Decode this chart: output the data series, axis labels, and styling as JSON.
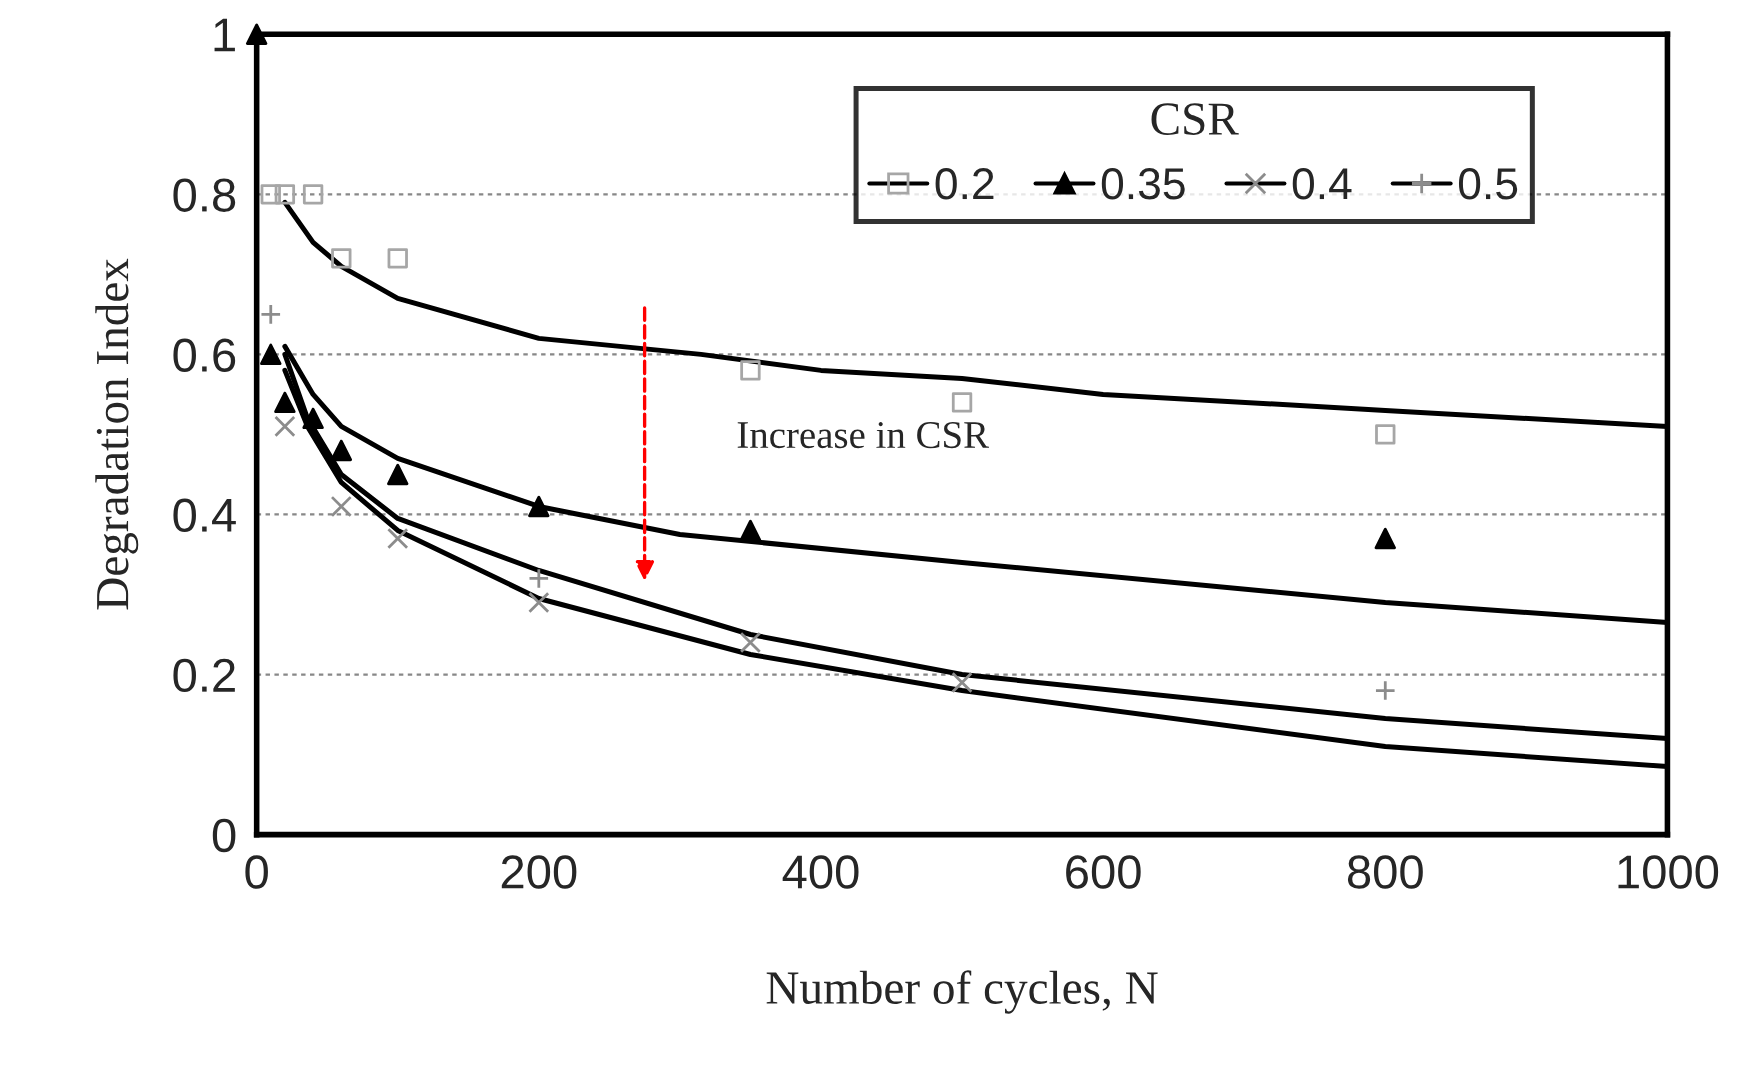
{
  "chart_data": {
    "type": "scatter",
    "xlabel": "Number of cycles, N",
    "ylabel": "Degradation Index",
    "legend_title": "CSR",
    "xlim": [
      0,
      1000
    ],
    "xticks": [
      0,
      200,
      400,
      600,
      800,
      1000
    ],
    "ylim": [
      0,
      1
    ],
    "yticks": [
      0,
      0.2,
      0.4,
      0.6,
      0.8,
      1
    ],
    "grid": "y",
    "legend": "top right",
    "annotations": [
      "Increase in CSR"
    ],
    "series": [
      {
        "name": "0.2",
        "marker": "square",
        "color": "#a6a6a6",
        "x": [
          10,
          20,
          40,
          60,
          100,
          350,
          500,
          800
        ],
        "values": [
          0.8,
          0.8,
          0.8,
          0.72,
          0.72,
          0.58,
          0.54,
          0.5
        ]
      },
      {
        "name": "0.35",
        "marker": "triangle",
        "color": "#000000",
        "x": [
          0,
          10,
          20,
          40,
          60,
          100,
          200,
          350,
          800
        ],
        "values": [
          1,
          0.6,
          0.54,
          0.52,
          0.48,
          0.45,
          0.41,
          0.38,
          0.37
        ]
      },
      {
        "name": "0.4",
        "marker": "cross",
        "color": "#8c8c8c",
        "x": [
          20,
          60,
          100,
          200,
          350,
          500
        ],
        "values": [
          0.51,
          0.41,
          0.37,
          0.29,
          0.24,
          0.19
        ]
      },
      {
        "name": "0.5",
        "marker": "plus",
        "color": "#8c8c8c",
        "x": [
          10,
          200,
          800
        ],
        "values": [
          0.65,
          0.32,
          0.18
        ]
      },
      {
        "type": "line",
        "color": "#000000",
        "x": [
          20,
          40,
          60,
          100,
          200,
          315,
          400,
          500,
          600,
          800,
          1000
        ],
        "values": [
          0.79,
          0.74,
          0.71,
          0.67,
          0.62,
          0.6,
          0.58,
          0.57,
          0.55,
          0.53,
          0.51
        ]
      },
      {
        "type": "line",
        "color": "#000000",
        "x": [
          20,
          40,
          60,
          100,
          200,
          300,
          500,
          800,
          1000
        ],
        "values": [
          0.61,
          0.55,
          0.51,
          0.47,
          0.41,
          0.375,
          0.34,
          0.29,
          0.265
        ]
      },
      {
        "type": "line",
        "color": "#000000",
        "x": [
          20,
          36,
          60,
          100,
          200,
          350,
          500,
          800,
          1000
        ],
        "values": [
          0.6,
          0.52,
          0.45,
          0.395,
          0.33,
          0.25,
          0.2,
          0.145,
          0.12
        ]
      },
      {
        "type": "line",
        "color": "#000000",
        "x": [
          20,
          36,
          60,
          100,
          200,
          350,
          500,
          800,
          1000
        ],
        "values": [
          0.58,
          0.51,
          0.44,
          0.38,
          0.295,
          0.225,
          0.18,
          0.11,
          0.085
        ]
      }
    ]
  }
}
